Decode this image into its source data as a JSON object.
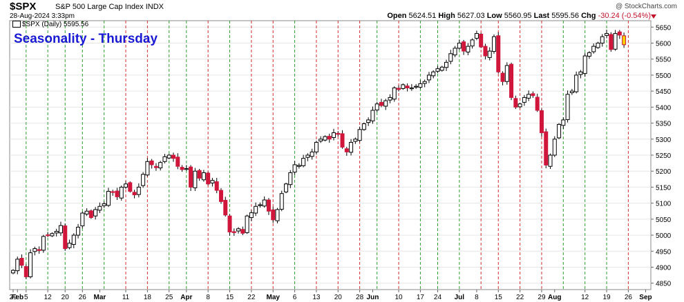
{
  "header": {
    "ticker": "$SPX",
    "name": "S&P 500 Large Cap Index",
    "exchange": "INDX",
    "date": "28-Aug-2024 3:33pm",
    "brand": "@ StockCharts.com",
    "open_label": "Open",
    "open": "5624.51",
    "high_label": "High",
    "high": "5627.03",
    "low_label": "Low",
    "low": "5560.95",
    "last_label": "Last",
    "last": "5595.56",
    "chg_label": "Chg",
    "chg": "-30.24 (-0.54%)"
  },
  "legend": {
    "text": "$SPX (Daily) 5595.56"
  },
  "chart_data": {
    "type": "candlestick",
    "title": "Seasonality - Thursday",
    "ylim": [
      4830,
      5670
    ],
    "y_ticks": [
      4850,
      4900,
      4950,
      5000,
      5050,
      5100,
      5150,
      5200,
      5250,
      5300,
      5350,
      5400,
      5450,
      5500,
      5550,
      5600,
      5650
    ],
    "x_labels": [
      {
        "label": "29",
        "i": 0
      },
      {
        "label": "Feb",
        "i": 1
      },
      {
        "label": "5",
        "i": 3
      },
      {
        "label": "12",
        "i": 8
      },
      {
        "label": "20",
        "i": 12
      },
      {
        "label": "26",
        "i": 16
      },
      {
        "label": "Mar",
        "i": 20
      },
      {
        "label": "11",
        "i": 26
      },
      {
        "label": "18",
        "i": 31
      },
      {
        "label": "25",
        "i": 36
      },
      {
        "label": "Apr",
        "i": 40
      },
      {
        "label": "8",
        "i": 45
      },
      {
        "label": "15",
        "i": 50
      },
      {
        "label": "22",
        "i": 55
      },
      {
        "label": "May",
        "i": 60
      },
      {
        "label": "6",
        "i": 65
      },
      {
        "label": "13",
        "i": 70
      },
      {
        "label": "20",
        "i": 75
      },
      {
        "label": "28",
        "i": 80
      },
      {
        "label": "Jun",
        "i": 83
      },
      {
        "label": "10",
        "i": 89
      },
      {
        "label": "17",
        "i": 94
      },
      {
        "label": "24",
        "i": 98
      },
      {
        "label": "Jul",
        "i": 103
      },
      {
        "label": "8",
        "i": 107
      },
      {
        "label": "15",
        "i": 112
      },
      {
        "label": "22",
        "i": 117
      },
      {
        "label": "29",
        "i": 122
      },
      {
        "label": "Aug",
        "i": 125
      },
      {
        "label": "12",
        "i": 132
      },
      {
        "label": "19",
        "i": 137
      },
      {
        "label": "26",
        "i": 142
      },
      {
        "label": "Sep",
        "i": 146
      }
    ],
    "thursdays": [
      {
        "i": 3,
        "up": true
      },
      {
        "i": 8,
        "up": true
      },
      {
        "i": 12,
        "up": true
      },
      {
        "i": 16,
        "up": true
      },
      {
        "i": 21,
        "up": true
      },
      {
        "i": 26,
        "up": false
      },
      {
        "i": 31,
        "up": false
      },
      {
        "i": 36,
        "up": true
      },
      {
        "i": 40,
        "up": true
      },
      {
        "i": 45,
        "up": false
      },
      {
        "i": 50,
        "up": true
      },
      {
        "i": 55,
        "up": false
      },
      {
        "i": 60,
        "up": false
      },
      {
        "i": 65,
        "up": true
      },
      {
        "i": 70,
        "up": false
      },
      {
        "i": 75,
        "up": false
      },
      {
        "i": 80,
        "up": false
      },
      {
        "i": 84,
        "up": true
      },
      {
        "i": 89,
        "up": false
      },
      {
        "i": 94,
        "up": true
      },
      {
        "i": 98,
        "up": true
      },
      {
        "i": 103,
        "up": true
      },
      {
        "i": 108,
        "up": false
      },
      {
        "i": 112,
        "up": false
      },
      {
        "i": 117,
        "up": false
      },
      {
        "i": 122,
        "up": false
      },
      {
        "i": 127,
        "up": true
      },
      {
        "i": 132,
        "up": true
      },
      {
        "i": 137,
        "up": true
      },
      {
        "i": 142,
        "up": false
      }
    ],
    "closes": [
      4890,
      4925,
      4906,
      4870,
      4945,
      4958,
      4952,
      4996,
      5000,
      5005,
      5012,
      5030,
      4958,
      4975,
      5000,
      5025,
      5069,
      5075,
      5055,
      5080,
      5090,
      5098,
      5137,
      5135,
      5120,
      5150,
      5160,
      5137,
      5126,
      5150,
      5190,
      5230,
      5220,
      5211,
      5227,
      5245,
      5250,
      5240,
      5215,
      5205,
      5208,
      5150,
      5200,
      5178,
      5195,
      5160,
      5171,
      5140,
      5105,
      5063,
      5010,
      5008,
      5020,
      5006,
      5060,
      5070,
      5090,
      5095,
      5110,
      5075,
      5048,
      5080,
      5130,
      5160,
      5195,
      5220,
      5218,
      5240,
      5250,
      5260,
      5290,
      5300,
      5308,
      5300,
      5320,
      5315,
      5275,
      5260,
      5290,
      5300,
      5330,
      5348,
      5360,
      5390,
      5410,
      5405,
      5420,
      5430,
      5460,
      5455,
      5470,
      5460,
      5460,
      5465,
      5473,
      5480,
      5500,
      5510,
      5520,
      5525,
      5540,
      5567,
      5584,
      5600,
      5575,
      5590,
      5610,
      5630,
      5588,
      5560,
      5575,
      5620,
      5510,
      5480,
      5530,
      5430,
      5400,
      5410,
      5430,
      5440,
      5436,
      5390,
      5320,
      5219,
      5250,
      5300,
      5346,
      5360,
      5440,
      5450,
      5500,
      5510,
      5560,
      5570,
      5590,
      5600,
      5620,
      5630,
      5580,
      5630,
      5625,
      5595
    ]
  }
}
